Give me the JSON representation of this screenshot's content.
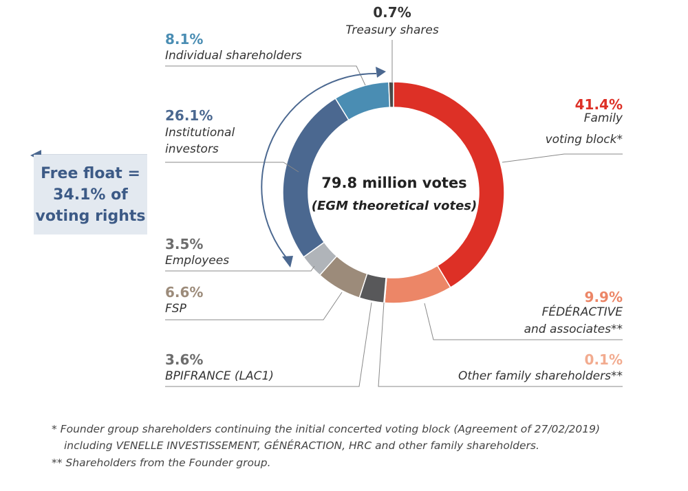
{
  "chart_data": {
    "type": "pie",
    "title": "79.8 million votes",
    "subtitle": "(EGM theoretical votes)",
    "segments": [
      {
        "name": "Family voting block*",
        "pct_label": "41.4%",
        "value": 41.4,
        "color": "#dd3026"
      },
      {
        "name": "FÉDÉRACTIVE and associates**",
        "pct_label": "9.9%",
        "value": 9.9,
        "color": "#ec8667"
      },
      {
        "name": "Other family shareholders**",
        "pct_label": "0.1%",
        "value": 0.1,
        "color": "#f2ab8f"
      },
      {
        "name": "BPIFRANCE (LAC1)",
        "pct_label": "3.6%",
        "value": 3.6,
        "color": "#58585a"
      },
      {
        "name": "FSP",
        "pct_label": "6.6%",
        "value": 6.6,
        "color": "#9c8b7a"
      },
      {
        "name": "Employees",
        "pct_label": "3.5%",
        "value": 3.5,
        "color": "#b0b4b9"
      },
      {
        "name": "Institutional investors",
        "pct_label": "26.1%",
        "value": 26.1,
        "color": "#4b6890"
      },
      {
        "name": "Individual shareholders",
        "pct_label": "8.1%",
        "value": 8.1,
        "color": "#4a8db3"
      },
      {
        "name": "Treasury shares",
        "pct_label": "0.7%",
        "value": 0.7,
        "color": "#4a4a4a"
      }
    ]
  },
  "labels": {
    "family_pct": "41.4%",
    "family_line1": "Family",
    "family_line2": "voting block*",
    "federactive_pct": "9.9%",
    "federactive_line1": "FÉDÉRACTIVE",
    "federactive_line2": "and associates**",
    "other_family_pct": "0.1%",
    "other_family_line1": "Other family shareholders**",
    "bpi_pct": "3.6%",
    "bpi_line1": "BPIFRANCE (LAC1)",
    "fsp_pct": "6.6%",
    "fsp_line1": "FSP",
    "employees_pct": "3.5%",
    "employees_line1": "Employees",
    "institutional_pct": "26.1%",
    "institutional_line1": "Institutional",
    "institutional_line2": "investors",
    "individual_pct": "8.1%",
    "individual_line1": "Individual shareholders",
    "treasury_pct": "0.7%",
    "treasury_line1": "Treasury shares"
  },
  "free_float": "Free float =\n34.1% of\nvoting rights",
  "footnotes": {
    "line1": "*  Founder group shareholders continuing the initial concerted voting block (Agreement of 27/02/2019)",
    "line2": "including VENELLE INVESTISSEMENT, GÉNÉRACTION, HRC and other family shareholders.",
    "line3": "** Shareholders from the Founder group."
  },
  "colors": {
    "family_text": "#dd3026",
    "federactive_text": "#ec8667",
    "other_family_text": "#f2ab8f",
    "bpi_text": "#6d6d6d",
    "fsp_text": "#9c8b7a",
    "employees_text": "#6d6d6d",
    "institutional_text": "#4b6890",
    "individual_text": "#4a8db3",
    "treasury_text": "#333333",
    "arrow": "#4b6890",
    "leader": "#888888"
  }
}
